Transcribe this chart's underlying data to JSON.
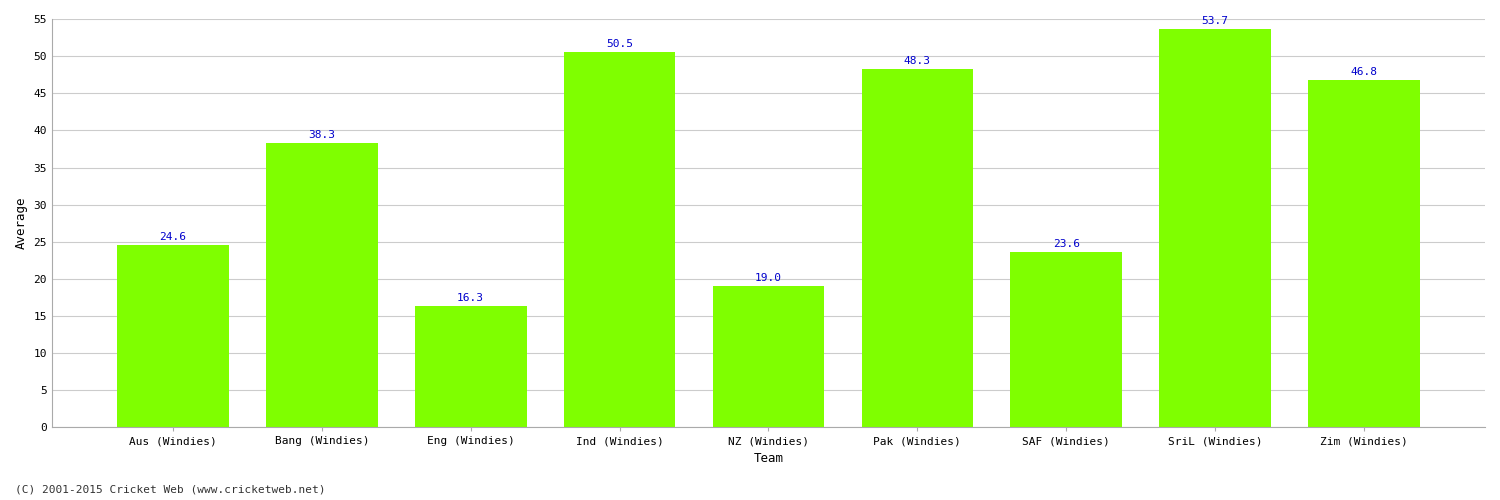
{
  "categories": [
    "Aus (Windies)",
    "Bang (Windies)",
    "Eng (Windies)",
    "Ind (Windies)",
    "NZ (Windies)",
    "Pak (Windies)",
    "SAF (Windies)",
    "SriL (Windies)",
    "Zim (Windies)"
  ],
  "values": [
    24.6,
    38.3,
    16.3,
    50.5,
    19.0,
    48.3,
    23.6,
    53.7,
    46.8
  ],
  "bar_color": "#7fff00",
  "bar_edge_color": "#7fff00",
  "label_color": "#0000cc",
  "xlabel": "Team",
  "ylabel": "Average",
  "ylim": [
    0,
    55
  ],
  "yticks": [
    0,
    5,
    10,
    15,
    20,
    25,
    30,
    35,
    40,
    45,
    50,
    55
  ],
  "grid_color": "#cccccc",
  "background_color": "#ffffff",
  "label_fontsize": 8,
  "axis_label_fontsize": 9,
  "tick_fontsize": 8,
  "footer_text": "(C) 2001-2015 Cricket Web (www.cricketweb.net)",
  "footer_fontsize": 8,
  "bar_width": 0.75
}
